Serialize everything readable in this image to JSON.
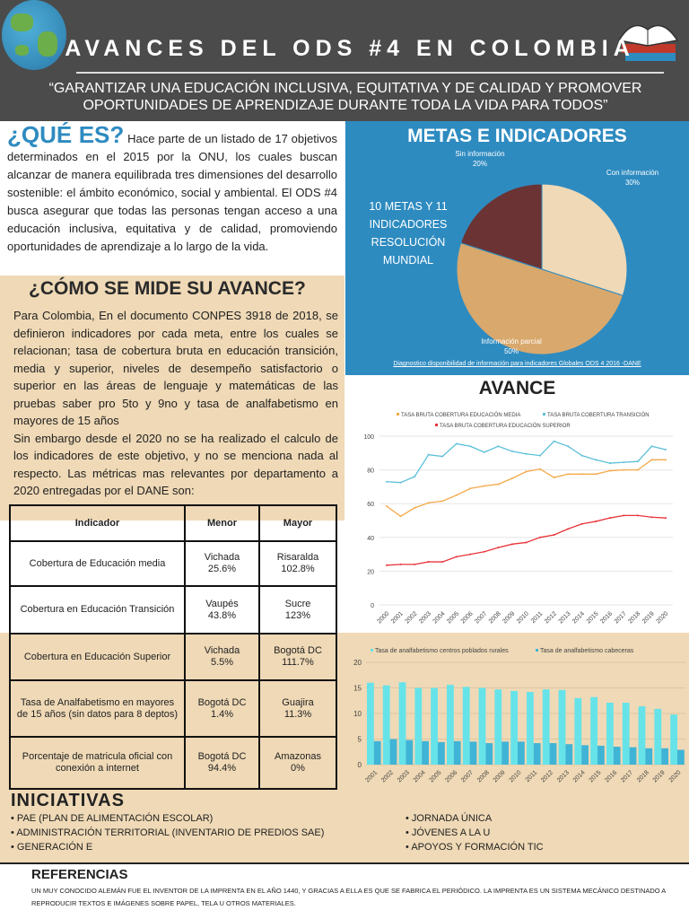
{
  "header": {
    "title": "AVANCES DEL ODS #4 EN COLOMBIA",
    "quote": "“GARANTIZAR UNA EDUCACIÓN INCLUSIVA, EQUITATIVA Y DE CALIDAD Y PROMOVER OPORTUNIDADES DE APRENDIZAJE DURANTE TODA LA VIDA PARA TODOS”"
  },
  "que_es": {
    "heading": "¿QUÉ ES?",
    "text": " Hace parte de un listado de 17 objetivos determinados en el 2015 por la ONU, los cuales buscan alcanzar de manera equilibrada tres dimensiones del desarrollo sostenible: el ámbito económico, social y ambiental. El ODS #4 busca asegurar que todas las personas tengan acceso a una educación inclusiva, equitativa y de calidad, promoviendo oportunidades de aprendizaje a lo largo de la vida."
  },
  "como_mide": {
    "heading": "¿CÓMO SE MIDE SU AVANCE?",
    "p1": "Para Colombia, En el documento CONPES 3918 de 2018, se definieron indicadores por cada meta, entre los cuales se relacionan; tasa de cobertura bruta en educación transición, media y superior, niveles de desempeño satisfactorio o superior en las áreas de lenguaje y matemáticas de las pruebas saber pro 5to y 9no y tasa de analfabetismo en mayores de 15 años",
    "p2": "Sin embargo desde el 2020 no se ha realizado el calculo de los indicadores de este objetivo, y no se menciona nada al respecto. Las métricas mas relevantes por departamento a 2020 entregadas por el DANE son:"
  },
  "table": {
    "headers": [
      "Indicador",
      "Menor",
      "Mayor"
    ],
    "rows": [
      [
        "Cobertura de Educación media",
        "Vichada 25.6%",
        "Risaralda 102.8%"
      ],
      [
        "Cobertura en Educación Transición",
        "Vaupés 43.8%",
        "Sucre 123%"
      ],
      [
        "Cobertura en Educación Superior",
        "Vichada 5.5%",
        "Bogotá DC 111.7%"
      ],
      [
        "Tasa de Analfabetismo en mayores de 15 años (sin datos para 8 deptos)",
        "Bogotá DC 1.4%",
        "Guajira 11.3%"
      ],
      [
        "Porcentaje de matricula oficial con conexión a internet",
        "Bogotá DC 94.4%",
        "Amazonas 0%"
      ]
    ]
  },
  "metas": {
    "title": "METAS E INDICADORES",
    "side_text": "10 METAS Y 11 INDICADORES RESOLUCIÓN MUNDIAL",
    "source": "Diagnostico disponibilidad de información para indicadores Globales ODS 4 2016 -DANE"
  },
  "avance": {
    "title": "AVANCE"
  },
  "iniciativas": {
    "title": "INICIATIVAS",
    "items": [
      "PAE (PLAN DE ALIMENTACIÓN ESCOLAR)",
      "JORNADA ÚNICA",
      "GENERACIÓN E",
      "JÓVENES A LA U",
      "APOYOS Y FORMACIÓN TIC",
      "ADMINISTRACIÓN TERRITORIAL (INVENTARIO DE PREDIOS SAE)"
    ]
  },
  "referencias": {
    "title": "REFERENCIAS",
    "text": "UN MUY CONOCIDO ALEMÁN FUE EL INVENTOR DE LA IMPRENTA EN EL AÑO 1440, Y GRACIAS A ELLA ES QUE SE FABRICA EL PERIÓDICO. LA IMPRENTA ES UN SISTEMA MECÁNICO DESTINADO A REPRODUCIR TEXTOS E IMÁGENES SOBRE PAPEL, TELA U OTROS MATERIALES."
  },
  "chart_data": [
    {
      "type": "pie",
      "labels": [
        "Con información",
        "Información parcial",
        "Sin información"
      ],
      "values": [
        30,
        50,
        20
      ],
      "value_labels": [
        "30%",
        "50%",
        "20%"
      ],
      "colors": [
        "#efd9b6",
        "#d9a86c",
        "#6b3333"
      ]
    },
    {
      "type": "line",
      "x": [
        2000,
        2001,
        2002,
        2003,
        2004,
        2005,
        2006,
        2007,
        2008,
        2009,
        2010,
        2011,
        2012,
        2013,
        2014,
        2015,
        2016,
        2017,
        2018,
        2019,
        2020
      ],
      "ylim": [
        0,
        100
      ],
      "yticks": [
        0,
        20,
        40,
        60,
        80,
        100
      ],
      "grid": true,
      "legend": "top",
      "series": [
        {
          "name": "TASA BRUTA COBERTURA EDUCACIÓN MEDIA",
          "color": "#f5a94a",
          "values": [
            58.5,
            52.5,
            57.5,
            60.5,
            61.5,
            65,
            69,
            70.5,
            71.5,
            75,
            79,
            80.5,
            75.5,
            77.5,
            77.5,
            77.5,
            79.5,
            80,
            80,
            86,
            86
          ]
        },
        {
          "name": "TASA BRUTA COBERTURA TRANSICIÓN",
          "color": "#5bc0d8",
          "values": [
            73,
            72.5,
            76,
            89,
            88,
            95.5,
            94,
            90.5,
            94,
            91,
            89.5,
            88.5,
            97,
            94,
            88.5,
            86,
            84,
            84.5,
            85,
            94,
            92
          ]
        },
        {
          "name": "TASA BRUTA COBERTURA EDUCACIÓN SUPERIOR",
          "color": "#e8343a",
          "values": [
            23.5,
            24,
            24,
            25.5,
            25.5,
            28.5,
            30,
            31.5,
            34,
            36,
            37,
            40,
            41.5,
            45,
            48,
            49.5,
            51.5,
            53,
            53,
            52,
            51.5
          ]
        }
      ]
    },
    {
      "type": "bar",
      "categories": [
        2001,
        2002,
        2003,
        2004,
        2005,
        2006,
        2007,
        2008,
        2009,
        2010,
        2011,
        2012,
        2013,
        2014,
        2015,
        2016,
        2017,
        2018,
        2019,
        2020
      ],
      "ylim": [
        0,
        20
      ],
      "yticks": [
        0,
        5,
        10,
        15,
        20
      ],
      "grid": true,
      "legend": "top",
      "series": [
        {
          "name": "Tasa de analfabetismo centros poblados rurales",
          "color": "#66e3e9",
          "values": [
            16,
            15.5,
            16.1,
            15,
            15,
            15.6,
            15.2,
            15,
            14.7,
            14.4,
            14.2,
            14.7,
            14.6,
            13,
            13.2,
            12.1,
            12.1,
            11.4,
            10.9,
            9.8
          ]
        },
        {
          "name": "Tasa de analfabetismo cabeceras",
          "color": "#3fb4d6",
          "values": [
            4.6,
            5,
            4.8,
            4.6,
            4.4,
            4.6,
            4.5,
            4.2,
            4.5,
            4.5,
            4.2,
            4.2,
            4,
            3.8,
            3.7,
            3.5,
            3.4,
            3.2,
            3.2,
            2.9
          ]
        }
      ]
    }
  ]
}
